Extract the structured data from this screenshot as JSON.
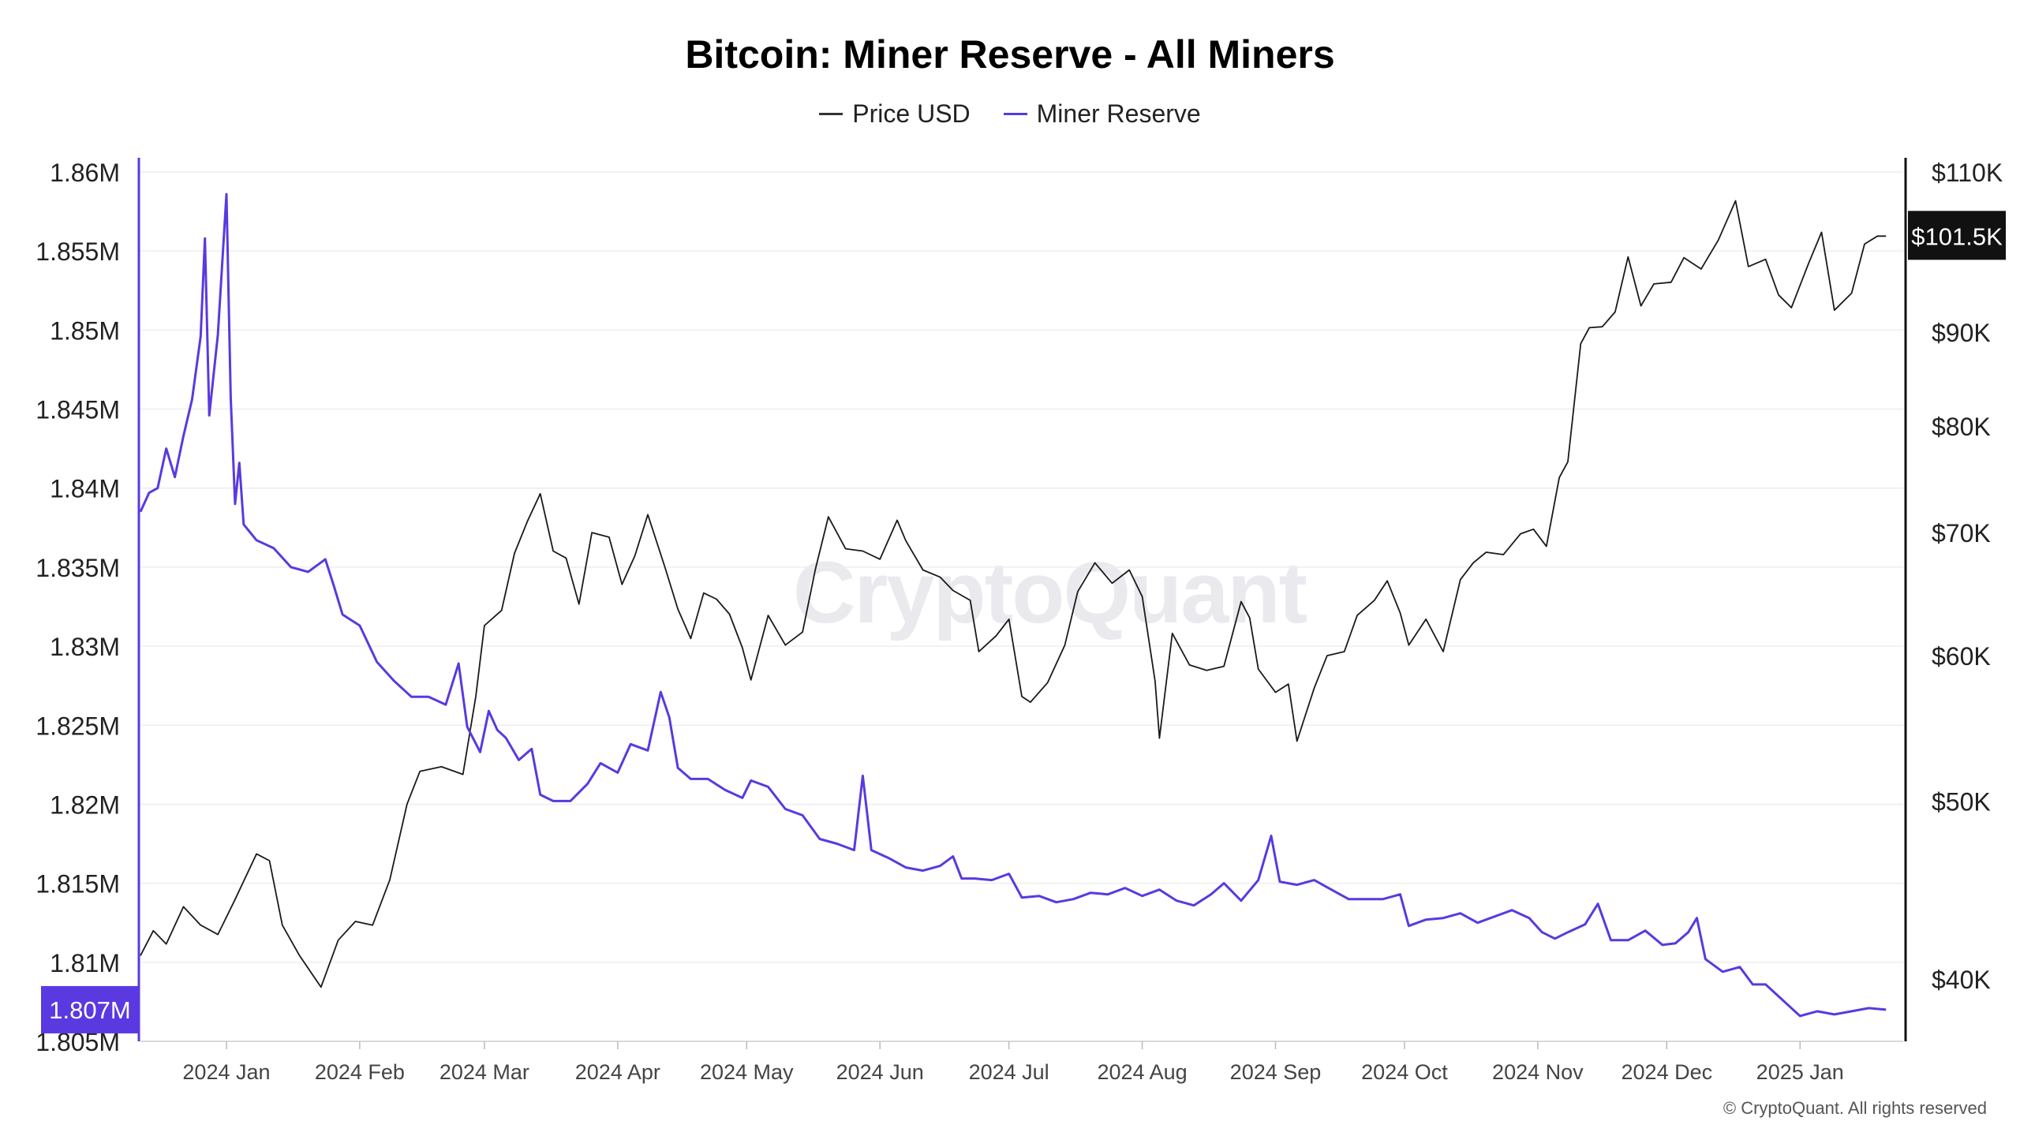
{
  "chart_data": {
    "type": "line",
    "title": "Bitcoin: Miner Reserve - All Miners",
    "legend_position": "top-center",
    "grid": true,
    "x_tick_labels": [
      "2024 Jan",
      "2024 Feb",
      "2024 Mar",
      "2024 Apr",
      "2024 May",
      "2024 Jun",
      "2024 Jul",
      "2024 Aug",
      "2024 Sep",
      "2024 Oct",
      "2024 Nov",
      "2024 Dec",
      "2025 Jan"
    ],
    "x_range": [
      "2023-12-12",
      "2025-01-25"
    ],
    "left_axis": {
      "tick_labels": [
        "1.805M",
        "1.81M",
        "1.815M",
        "1.82M",
        "1.825M",
        "1.83M",
        "1.835M",
        "1.84M",
        "1.845M",
        "1.85M",
        "1.855M",
        "1.86M"
      ],
      "range": [
        1805000,
        1860000
      ],
      "current_value_label": "1.807M"
    },
    "right_axis": {
      "scale": "log",
      "tick_labels": [
        "$40K",
        "$50K",
        "$60K",
        "$70K",
        "$80K",
        "$90K",
        "$110K"
      ],
      "tick_values": [
        40000,
        50000,
        60000,
        70000,
        80000,
        90000,
        110000
      ],
      "range": [
        37000,
        110000
      ],
      "current_value_label": "$101.5K"
    },
    "series": [
      {
        "name": "Price USD",
        "axis": "right",
        "color": "#1a1a1a",
        "points": [
          [
            "2023-12-12",
            41200
          ],
          [
            "2023-12-15",
            42500
          ],
          [
            "2023-12-18",
            41800
          ],
          [
            "2023-12-22",
            43800
          ],
          [
            "2023-12-26",
            42800
          ],
          [
            "2023-12-30",
            42300
          ],
          [
            "2024-01-03",
            44200
          ],
          [
            "2024-01-08",
            46800
          ],
          [
            "2024-01-11",
            46400
          ],
          [
            "2024-01-14",
            42800
          ],
          [
            "2024-01-18",
            41200
          ],
          [
            "2024-01-23",
            39600
          ],
          [
            "2024-01-27",
            42000
          ],
          [
            "2024-01-31",
            43000
          ],
          [
            "2024-02-04",
            42800
          ],
          [
            "2024-02-08",
            45300
          ],
          [
            "2024-02-12",
            49800
          ],
          [
            "2024-02-15",
            51900
          ],
          [
            "2024-02-20",
            52200
          ],
          [
            "2024-02-25",
            51700
          ],
          [
            "2024-02-28",
            57000
          ],
          [
            "2024-03-01",
            62300
          ],
          [
            "2024-03-05",
            63500
          ],
          [
            "2024-03-08",
            68200
          ],
          [
            "2024-03-11",
            71000
          ],
          [
            "2024-03-14",
            73500
          ],
          [
            "2024-03-17",
            68400
          ],
          [
            "2024-03-20",
            67800
          ],
          [
            "2024-03-23",
            64000
          ],
          [
            "2024-03-26",
            70000
          ],
          [
            "2024-03-30",
            69600
          ],
          [
            "2024-04-02",
            65600
          ],
          [
            "2024-04-05",
            68000
          ],
          [
            "2024-04-08",
            71600
          ],
          [
            "2024-04-12",
            67000
          ],
          [
            "2024-04-15",
            63600
          ],
          [
            "2024-04-18",
            61300
          ],
          [
            "2024-04-21",
            64900
          ],
          [
            "2024-04-24",
            64400
          ],
          [
            "2024-04-27",
            63200
          ],
          [
            "2024-04-30",
            60600
          ],
          [
            "2024-05-02",
            58200
          ],
          [
            "2024-05-06",
            63100
          ],
          [
            "2024-05-10",
            60800
          ],
          [
            "2024-05-14",
            61800
          ],
          [
            "2024-05-17",
            66900
          ],
          [
            "2024-05-20",
            71400
          ],
          [
            "2024-05-24",
            68600
          ],
          [
            "2024-05-28",
            68400
          ],
          [
            "2024-06-01",
            67700
          ],
          [
            "2024-06-05",
            71100
          ],
          [
            "2024-06-07",
            69300
          ],
          [
            "2024-06-11",
            66800
          ],
          [
            "2024-06-15",
            66200
          ],
          [
            "2024-06-18",
            65100
          ],
          [
            "2024-06-22",
            64300
          ],
          [
            "2024-06-24",
            60300
          ],
          [
            "2024-06-28",
            61500
          ],
          [
            "2024-07-01",
            62800
          ],
          [
            "2024-07-04",
            57000
          ],
          [
            "2024-07-06",
            56600
          ],
          [
            "2024-07-10",
            58000
          ],
          [
            "2024-07-14",
            60800
          ],
          [
            "2024-07-17",
            65000
          ],
          [
            "2024-07-21",
            67400
          ],
          [
            "2024-07-25",
            65700
          ],
          [
            "2024-07-29",
            66800
          ],
          [
            "2024-08-01",
            64600
          ],
          [
            "2024-08-04",
            58100
          ],
          [
            "2024-08-05",
            54100
          ],
          [
            "2024-08-08",
            61700
          ],
          [
            "2024-08-12",
            59300
          ],
          [
            "2024-08-16",
            58900
          ],
          [
            "2024-08-20",
            59200
          ],
          [
            "2024-08-24",
            64200
          ],
          [
            "2024-08-26",
            62900
          ],
          [
            "2024-08-28",
            59000
          ],
          [
            "2024-09-01",
            57300
          ],
          [
            "2024-09-04",
            57900
          ],
          [
            "2024-09-06",
            53900
          ],
          [
            "2024-09-10",
            57600
          ],
          [
            "2024-09-13",
            60000
          ],
          [
            "2024-09-17",
            60300
          ],
          [
            "2024-09-20",
            63100
          ],
          [
            "2024-09-24",
            64300
          ],
          [
            "2024-09-27",
            65900
          ],
          [
            "2024-09-30",
            63300
          ],
          [
            "2024-10-02",
            60800
          ],
          [
            "2024-10-06",
            62800
          ],
          [
            "2024-10-10",
            60300
          ],
          [
            "2024-10-14",
            66000
          ],
          [
            "2024-10-17",
            67400
          ],
          [
            "2024-10-20",
            68300
          ],
          [
            "2024-10-24",
            68100
          ],
          [
            "2024-10-28",
            69900
          ],
          [
            "2024-10-31",
            70300
          ],
          [
            "2024-11-03",
            68800
          ],
          [
            "2024-11-06",
            75000
          ],
          [
            "2024-11-08",
            76500
          ],
          [
            "2024-11-11",
            88700
          ],
          [
            "2024-11-13",
            90500
          ],
          [
            "2024-11-16",
            90600
          ],
          [
            "2024-11-19",
            92300
          ],
          [
            "2024-11-22",
            98900
          ],
          [
            "2024-11-25",
            93000
          ],
          [
            "2024-11-28",
            95600
          ],
          [
            "2024-12-02",
            95800
          ],
          [
            "2024-12-05",
            98800
          ],
          [
            "2024-12-09",
            97400
          ],
          [
            "2024-12-13",
            101000
          ],
          [
            "2024-12-17",
            106100
          ],
          [
            "2024-12-20",
            97700
          ],
          [
            "2024-12-24",
            98600
          ],
          [
            "2024-12-27",
            94300
          ],
          [
            "2024-12-30",
            92800
          ],
          [
            "2025-01-03",
            98100
          ],
          [
            "2025-01-06",
            102000
          ],
          [
            "2025-01-09",
            92500
          ],
          [
            "2025-01-13",
            94500
          ],
          [
            "2025-01-16",
            100500
          ],
          [
            "2025-01-19",
            101500
          ],
          [
            "2025-01-21",
            101500
          ]
        ]
      },
      {
        "name": "Miner Reserve",
        "axis": "left",
        "color": "#5a39e0",
        "points": [
          [
            "2023-12-12",
            1838500
          ],
          [
            "2023-12-14",
            1839700
          ],
          [
            "2023-12-16",
            1840000
          ],
          [
            "2023-12-18",
            1842500
          ],
          [
            "2023-12-20",
            1840700
          ],
          [
            "2023-12-22",
            1843300
          ],
          [
            "2023-12-24",
            1845600
          ],
          [
            "2023-12-26",
            1849600
          ],
          [
            "2023-12-27",
            1855800
          ],
          [
            "2023-12-28",
            1844600
          ],
          [
            "2023-12-30",
            1849700
          ],
          [
            "2024-01-01",
            1858600
          ],
          [
            "2024-01-02",
            1845700
          ],
          [
            "2024-01-03",
            1839000
          ],
          [
            "2024-01-04",
            1841600
          ],
          [
            "2024-01-05",
            1837700
          ],
          [
            "2024-01-08",
            1836700
          ],
          [
            "2024-01-12",
            1836200
          ],
          [
            "2024-01-16",
            1835000
          ],
          [
            "2024-01-20",
            1834700
          ],
          [
            "2024-01-24",
            1835500
          ],
          [
            "2024-01-26",
            1833800
          ],
          [
            "2024-01-28",
            1832000
          ],
          [
            "2024-02-01",
            1831300
          ],
          [
            "2024-02-05",
            1829000
          ],
          [
            "2024-02-09",
            1827800
          ],
          [
            "2024-02-13",
            1826800
          ],
          [
            "2024-02-17",
            1826800
          ],
          [
            "2024-02-21",
            1826300
          ],
          [
            "2024-02-24",
            1828900
          ],
          [
            "2024-02-26",
            1824900
          ],
          [
            "2024-02-29",
            1823300
          ],
          [
            "2024-03-02",
            1825900
          ],
          [
            "2024-03-04",
            1824700
          ],
          [
            "2024-03-06",
            1824200
          ],
          [
            "2024-03-09",
            1822800
          ],
          [
            "2024-03-12",
            1823500
          ],
          [
            "2024-03-14",
            1820600
          ],
          [
            "2024-03-17",
            1820200
          ],
          [
            "2024-03-21",
            1820200
          ],
          [
            "2024-03-25",
            1821300
          ],
          [
            "2024-03-28",
            1822600
          ],
          [
            "2024-04-01",
            1822000
          ],
          [
            "2024-04-04",
            1823800
          ],
          [
            "2024-04-08",
            1823400
          ],
          [
            "2024-04-11",
            1827100
          ],
          [
            "2024-04-13",
            1825500
          ],
          [
            "2024-04-15",
            1822300
          ],
          [
            "2024-04-18",
            1821600
          ],
          [
            "2024-04-22",
            1821600
          ],
          [
            "2024-04-26",
            1820900
          ],
          [
            "2024-04-30",
            1820400
          ],
          [
            "2024-05-02",
            1821500
          ],
          [
            "2024-05-06",
            1821100
          ],
          [
            "2024-05-10",
            1819700
          ],
          [
            "2024-05-14",
            1819300
          ],
          [
            "2024-05-18",
            1817800
          ],
          [
            "2024-05-22",
            1817500
          ],
          [
            "2024-05-26",
            1817100
          ],
          [
            "2024-05-28",
            1821800
          ],
          [
            "2024-05-30",
            1817100
          ],
          [
            "2024-06-03",
            1816600
          ],
          [
            "2024-06-07",
            1816000
          ],
          [
            "2024-06-11",
            1815800
          ],
          [
            "2024-06-15",
            1816100
          ],
          [
            "2024-06-18",
            1816700
          ],
          [
            "2024-06-20",
            1815300
          ],
          [
            "2024-06-23",
            1815300
          ],
          [
            "2024-06-27",
            1815200
          ],
          [
            "2024-07-01",
            1815600
          ],
          [
            "2024-07-04",
            1814100
          ],
          [
            "2024-07-08",
            1814200
          ],
          [
            "2024-07-12",
            1813800
          ],
          [
            "2024-07-16",
            1814000
          ],
          [
            "2024-07-20",
            1814400
          ],
          [
            "2024-07-24",
            1814300
          ],
          [
            "2024-07-28",
            1814700
          ],
          [
            "2024-08-01",
            1814200
          ],
          [
            "2024-08-05",
            1814600
          ],
          [
            "2024-08-09",
            1813900
          ],
          [
            "2024-08-13",
            1813600
          ],
          [
            "2024-08-17",
            1814300
          ],
          [
            "2024-08-20",
            1815000
          ],
          [
            "2024-08-24",
            1813900
          ],
          [
            "2024-08-28",
            1815200
          ],
          [
            "2024-08-31",
            1818000
          ],
          [
            "2024-09-02",
            1815100
          ],
          [
            "2024-09-06",
            1814900
          ],
          [
            "2024-09-10",
            1815200
          ],
          [
            "2024-09-14",
            1814600
          ],
          [
            "2024-09-18",
            1814000
          ],
          [
            "2024-09-22",
            1814000
          ],
          [
            "2024-09-26",
            1814000
          ],
          [
            "2024-09-30",
            1814300
          ],
          [
            "2024-10-02",
            1812300
          ],
          [
            "2024-10-06",
            1812700
          ],
          [
            "2024-10-10",
            1812800
          ],
          [
            "2024-10-14",
            1813100
          ],
          [
            "2024-10-18",
            1812500
          ],
          [
            "2024-10-22",
            1812900
          ],
          [
            "2024-10-26",
            1813300
          ],
          [
            "2024-10-30",
            1812800
          ],
          [
            "2024-11-02",
            1811900
          ],
          [
            "2024-11-05",
            1811500
          ],
          [
            "2024-11-08",
            1811900
          ],
          [
            "2024-11-12",
            1812400
          ],
          [
            "2024-11-15",
            1813700
          ],
          [
            "2024-11-18",
            1811400
          ],
          [
            "2024-11-22",
            1811400
          ],
          [
            "2024-11-26",
            1812000
          ],
          [
            "2024-11-30",
            1811100
          ],
          [
            "2024-12-03",
            1811200
          ],
          [
            "2024-12-06",
            1811900
          ],
          [
            "2024-12-08",
            1812800
          ],
          [
            "2024-12-10",
            1810200
          ],
          [
            "2024-12-14",
            1809400
          ],
          [
            "2024-12-18",
            1809700
          ],
          [
            "2024-12-21",
            1808600
          ],
          [
            "2024-12-24",
            1808600
          ],
          [
            "2024-12-28",
            1807600
          ],
          [
            "2025-01-01",
            1806600
          ],
          [
            "2025-01-05",
            1806900
          ],
          [
            "2025-01-09",
            1806700
          ],
          [
            "2025-01-13",
            1806900
          ],
          [
            "2025-01-17",
            1807100
          ],
          [
            "2025-01-21",
            1807000
          ]
        ]
      }
    ]
  },
  "watermark": "CryptoQuant",
  "copyright": "© CryptoQuant. All rights reserved"
}
